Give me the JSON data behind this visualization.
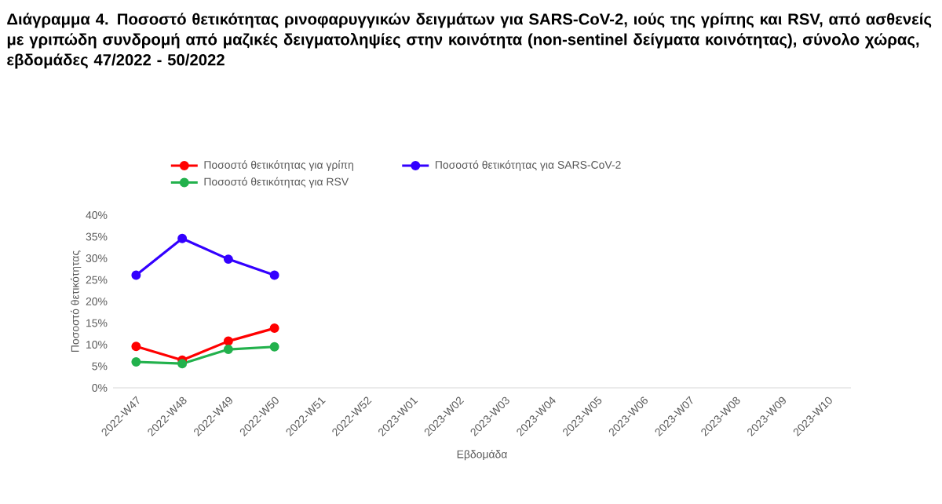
{
  "chart_data": {
    "type": "line",
    "title": "Διάγραμμα 4. Ποσοστό θετικότητας ρινοφαρυγγικών δειγμάτων για SARS-CoV-2, ιούς της γρίπης και RSV, από ασθενείς με γριπώδη συνδρομή από μαζικές δειγματοληψίες στην κοινότητα (non-sentinel δείγματα κοινότητας), σύνολο χώρας, εβδομάδες 47/2022 - 50/2022",
    "xlabel": "Εβδομάδα",
    "ylabel": "Ποσοστό θετικότητας",
    "categories": [
      "2022-W47",
      "2022-W48",
      "2022-W49",
      "2022-W50",
      "2022-W51",
      "2022-W52",
      "2023-W01",
      "2023-W02",
      "2023-W03",
      "2023-W04",
      "2023-W05",
      "2023-W06",
      "2023-W07",
      "2023-W08",
      "2023-W09",
      "2023-W10"
    ],
    "series": [
      {
        "name": "Ποσοστό θετικότητας για γρίπη",
        "color": "#ff0000",
        "values": [
          9.6,
          6.4,
          10.8,
          13.8,
          null,
          null,
          null,
          null,
          null,
          null,
          null,
          null,
          null,
          null,
          null,
          null
        ]
      },
      {
        "name": "Ποσοστό θετικότητας για SARS-CoV-2",
        "color": "#3300ff",
        "values": [
          26.1,
          34.6,
          29.8,
          26.1,
          null,
          null,
          null,
          null,
          null,
          null,
          null,
          null,
          null,
          null,
          null,
          null
        ]
      },
      {
        "name": "Ποσοστό θετικότητας για RSV",
        "color": "#22b14c",
        "values": [
          6.0,
          5.6,
          8.9,
          9.5,
          null,
          null,
          null,
          null,
          null,
          null,
          null,
          null,
          null,
          null,
          null,
          null
        ]
      }
    ],
    "ylim": [
      0,
      40
    ],
    "yticks": [
      {
        "value": 0,
        "label": "0%"
      },
      {
        "value": 5,
        "label": "5%"
      },
      {
        "value": 10,
        "label": "10%"
      },
      {
        "value": 15,
        "label": "15%"
      },
      {
        "value": 20,
        "label": "20%"
      },
      {
        "value": 25,
        "label": "25%"
      },
      {
        "value": 30,
        "label": "30%"
      },
      {
        "value": 35,
        "label": "35%"
      },
      {
        "value": 40,
        "label": "40%"
      }
    ],
    "grid": false,
    "legend": "top",
    "marker": "circle",
    "line_style": "solid"
  }
}
